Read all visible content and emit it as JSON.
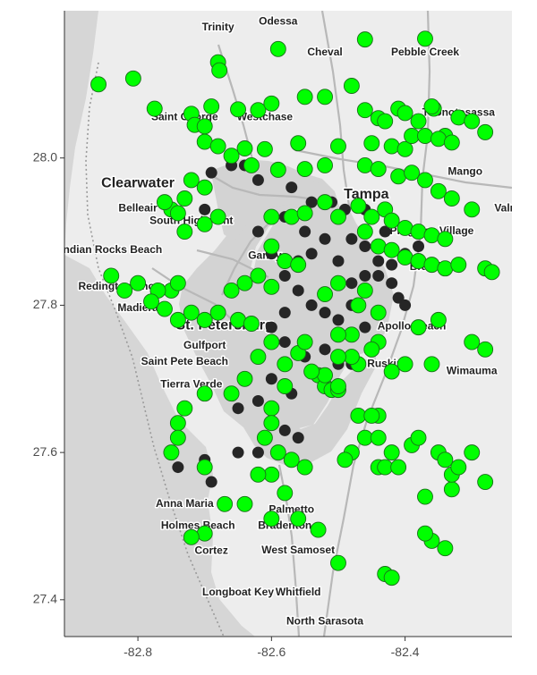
{
  "map": {
    "x_ticks": [
      {
        "value": -82.8,
        "label": "-82.8"
      },
      {
        "value": -82.6,
        "label": "-82.6"
      },
      {
        "value": -82.4,
        "label": "-82.4"
      }
    ],
    "y_ticks": [
      {
        "value": 28.0,
        "label": "28.0"
      },
      {
        "value": 27.8,
        "label": "27.8"
      },
      {
        "value": 27.6,
        "label": "27.6"
      },
      {
        "value": 27.4,
        "label": "27.4"
      }
    ],
    "xlim": [
      -82.91,
      -82.24
    ],
    "ylim": [
      27.35,
      28.2
    ],
    "colors": {
      "land": "#ededed",
      "water_gulf": "#d6d6d6",
      "water_bay": "#d3d3d3",
      "road": "#b8b8b8",
      "green_point": "#00ff00",
      "green_point_stroke": "#1a6e1a",
      "dark_point": "#262626"
    },
    "place_labels": [
      {
        "id": "odessa",
        "text": "Odessa",
        "lon": -82.59,
        "lat": 28.185,
        "size": "normal"
      },
      {
        "id": "trinity",
        "text": "Trinity",
        "lon": -82.68,
        "lat": 28.177,
        "size": "normal"
      },
      {
        "id": "cheval",
        "text": "Cheval",
        "lon": -82.52,
        "lat": 28.143,
        "size": "normal"
      },
      {
        "id": "pebble-creek",
        "text": "Pebble Creek",
        "lon": -82.37,
        "lat": 28.143,
        "size": "normal"
      },
      {
        "id": "saint-george",
        "text": "Saint George",
        "lon": -82.73,
        "lat": 28.055,
        "size": "normal"
      },
      {
        "id": "westchase",
        "text": "Westchase",
        "lon": -82.61,
        "lat": 28.055,
        "size": "normal"
      },
      {
        "id": "thonotosassa",
        "text": "Thonotosassa",
        "lon": -82.32,
        "lat": 28.061,
        "size": "normal"
      },
      {
        "id": "mango",
        "text": "Mango",
        "lon": -82.31,
        "lat": 27.981,
        "size": "normal"
      },
      {
        "id": "clearwater",
        "text": "Clearwater",
        "lon": -82.8,
        "lat": 27.965,
        "size": "large"
      },
      {
        "id": "belleair",
        "text": "Belleair",
        "lon": -82.8,
        "lat": 27.931,
        "size": "normal"
      },
      {
        "id": "tampa",
        "text": "Tampa",
        "lon": -82.458,
        "lat": 27.95,
        "size": "large"
      },
      {
        "id": "south-highpoint",
        "text": "South Highpoint",
        "lon": -82.72,
        "lat": 27.914,
        "size": "normal"
      },
      {
        "id": "valrico",
        "text": "Valrico",
        "lon": -82.24,
        "lat": 27.931,
        "size": "normal"
      },
      {
        "id": "progress-village",
        "text": "Progress Village",
        "lon": -82.36,
        "lat": 27.9,
        "size": "normal"
      },
      {
        "id": "indian-rocks-beach",
        "text": "Indian Rocks Beach",
        "lon": -82.84,
        "lat": 27.875,
        "size": "normal"
      },
      {
        "id": "gandy",
        "text": "Gandy",
        "lon": -82.61,
        "lat": 27.867,
        "size": "normal"
      },
      {
        "id": "brandon",
        "text": "Brandon",
        "lon": -82.36,
        "lat": 27.852,
        "size": "normal"
      },
      {
        "id": "redington-shores",
        "text": "Redington Shores",
        "lon": -82.82,
        "lat": 27.825,
        "size": "normal"
      },
      {
        "id": "madiera",
        "text": "Madiera",
        "lon": -82.8,
        "lat": 27.796,
        "size": "normal"
      },
      {
        "id": "st-petersburg",
        "text": "St. Petersburg",
        "lon": -82.67,
        "lat": 27.772,
        "size": "large"
      },
      {
        "id": "apollo-beach",
        "text": "Apollo Beach",
        "lon": -82.39,
        "lat": 27.771,
        "size": "normal"
      },
      {
        "id": "gulfport",
        "text": "Gulfport",
        "lon": -82.7,
        "lat": 27.745,
        "size": "normal"
      },
      {
        "id": "saint-pete-beach",
        "text": "Saint Pete Beach",
        "lon": -82.73,
        "lat": 27.723,
        "size": "normal"
      },
      {
        "id": "ruskin",
        "text": "Ruskin",
        "lon": -82.43,
        "lat": 27.72,
        "size": "normal"
      },
      {
        "id": "wimauma",
        "text": "Wimauma",
        "lon": -82.3,
        "lat": 27.71,
        "size": "normal"
      },
      {
        "id": "tierra-verde",
        "text": "Tierra Verde",
        "lon": -82.72,
        "lat": 27.692,
        "size": "normal"
      },
      {
        "id": "anna-maria",
        "text": "Anna Maria",
        "lon": -82.73,
        "lat": 27.53,
        "size": "normal"
      },
      {
        "id": "palmetto",
        "text": "Palmetto",
        "lon": -82.57,
        "lat": 27.522,
        "size": "normal"
      },
      {
        "id": "holmes-beach",
        "text": "Holmes Beach",
        "lon": -82.71,
        "lat": 27.5,
        "size": "normal"
      },
      {
        "id": "bradenton",
        "text": "Bradenton",
        "lon": -82.58,
        "lat": 27.5,
        "size": "normal"
      },
      {
        "id": "cortez",
        "text": "Cortez",
        "lon": -82.69,
        "lat": 27.466,
        "size": "normal"
      },
      {
        "id": "west-samoset",
        "text": "West Samoset",
        "lon": -82.56,
        "lat": 27.467,
        "size": "normal"
      },
      {
        "id": "longboat-key",
        "text": "Longboat Key",
        "lon": -82.65,
        "lat": 27.41,
        "size": "normal"
      },
      {
        "id": "whitfield",
        "text": "Whitfield",
        "lon": -82.56,
        "lat": 27.41,
        "size": "normal"
      },
      {
        "id": "north-sarasota",
        "text": "North Sarasota",
        "lon": -82.52,
        "lat": 27.37,
        "size": "normal"
      }
    ],
    "green_points": [
      [
        -82.859,
        28.1
      ],
      [
        -82.807,
        28.108
      ],
      [
        -82.775,
        28.067
      ],
      [
        -82.68,
        28.13
      ],
      [
        -82.678,
        28.119
      ],
      [
        -82.59,
        28.148
      ],
      [
        -82.48,
        28.098
      ],
      [
        -82.46,
        28.161
      ],
      [
        -82.37,
        28.162
      ],
      [
        -82.357,
        28.067
      ],
      [
        -82.32,
        28.055
      ],
      [
        -82.3,
        28.05
      ],
      [
        -82.72,
        28.06
      ],
      [
        -82.69,
        28.07
      ],
      [
        -82.715,
        28.045
      ],
      [
        -82.7,
        28.043
      ],
      [
        -82.65,
        28.066
      ],
      [
        -82.62,
        28.065
      ],
      [
        -82.6,
        28.074
      ],
      [
        -82.55,
        28.083
      ],
      [
        -82.52,
        28.083
      ],
      [
        -82.46,
        28.065
      ],
      [
        -82.44,
        28.054
      ],
      [
        -82.43,
        28.05
      ],
      [
        -82.41,
        28.067
      ],
      [
        -82.4,
        28.061
      ],
      [
        -82.38,
        28.05
      ],
      [
        -82.36,
        28.07
      ],
      [
        -82.34,
        28.03
      ],
      [
        -82.28,
        28.035
      ],
      [
        -82.7,
        28.022
      ],
      [
        -82.68,
        28.016
      ],
      [
        -82.64,
        28.013
      ],
      [
        -82.61,
        28.012
      ],
      [
        -82.56,
        28.02
      ],
      [
        -82.5,
        28.016
      ],
      [
        -82.45,
        28.02
      ],
      [
        -82.42,
        28.016
      ],
      [
        -82.4,
        28.012
      ],
      [
        -82.39,
        28.03
      ],
      [
        -82.37,
        28.03
      ],
      [
        -82.35,
        28.026
      ],
      [
        -82.33,
        28.021
      ],
      [
        -82.66,
        28.003
      ],
      [
        -82.63,
        27.99
      ],
      [
        -82.59,
        27.984
      ],
      [
        -82.55,
        27.985
      ],
      [
        -82.52,
        27.99
      ],
      [
        -82.46,
        27.99
      ],
      [
        -82.44,
        27.985
      ],
      [
        -82.41,
        27.975
      ],
      [
        -82.39,
        27.98
      ],
      [
        -82.37,
        27.97
      ],
      [
        -82.35,
        27.955
      ],
      [
        -82.33,
        27.945
      ],
      [
        -82.3,
        27.93
      ],
      [
        -82.72,
        27.97
      ],
      [
        -82.7,
        27.96
      ],
      [
        -82.73,
        27.945
      ],
      [
        -82.75,
        27.93
      ],
      [
        -82.76,
        27.94
      ],
      [
        -82.74,
        27.925
      ],
      [
        -82.73,
        27.9
      ],
      [
        -82.7,
        27.91
      ],
      [
        -82.68,
        27.92
      ],
      [
        -82.6,
        27.92
      ],
      [
        -82.57,
        27.92
      ],
      [
        -82.55,
        27.925
      ],
      [
        -82.52,
        27.94
      ],
      [
        -82.5,
        27.92
      ],
      [
        -82.47,
        27.935
      ],
      [
        -82.45,
        27.92
      ],
      [
        -82.43,
        27.93
      ],
      [
        -82.42,
        27.915
      ],
      [
        -82.4,
        27.905
      ],
      [
        -82.38,
        27.9
      ],
      [
        -82.36,
        27.895
      ],
      [
        -82.34,
        27.89
      ],
      [
        -82.46,
        27.9
      ],
      [
        -82.44,
        27.88
      ],
      [
        -82.42,
        27.875
      ],
      [
        -82.4,
        27.865
      ],
      [
        -82.38,
        27.86
      ],
      [
        -82.36,
        27.855
      ],
      [
        -82.34,
        27.85
      ],
      [
        -82.32,
        27.855
      ],
      [
        -82.28,
        27.85
      ],
      [
        -82.27,
        27.845
      ],
      [
        -82.6,
        27.88
      ],
      [
        -82.58,
        27.86
      ],
      [
        -82.56,
        27.855
      ],
      [
        -82.62,
        27.84
      ],
      [
        -82.64,
        27.83
      ],
      [
        -82.6,
        27.825
      ],
      [
        -82.66,
        27.82
      ],
      [
        -82.68,
        27.79
      ],
      [
        -82.7,
        27.78
      ],
      [
        -82.65,
        27.78
      ],
      [
        -82.63,
        27.775
      ],
      [
        -82.75,
        27.82
      ],
      [
        -82.74,
        27.83
      ],
      [
        -82.77,
        27.82
      ],
      [
        -82.78,
        27.805
      ],
      [
        -82.76,
        27.795
      ],
      [
        -82.74,
        27.78
      ],
      [
        -82.72,
        27.79
      ],
      [
        -82.84,
        27.84
      ],
      [
        -82.8,
        27.83
      ],
      [
        -82.82,
        27.82
      ],
      [
        -82.7,
        27.68
      ],
      [
        -82.73,
        27.66
      ],
      [
        -82.74,
        27.64
      ],
      [
        -82.74,
        27.62
      ],
      [
        -82.75,
        27.6
      ],
      [
        -82.7,
        27.58
      ],
      [
        -82.66,
        27.68
      ],
      [
        -82.64,
        27.7
      ],
      [
        -82.58,
        27.72
      ],
      [
        -82.56,
        27.735
      ],
      [
        -82.6,
        27.75
      ],
      [
        -82.62,
        27.73
      ],
      [
        -82.55,
        27.75
      ],
      [
        -82.53,
        27.705
      ],
      [
        -82.52,
        27.69
      ],
      [
        -82.51,
        27.685
      ],
      [
        -82.5,
        27.685
      ],
      [
        -82.58,
        27.69
      ],
      [
        -82.6,
        27.66
      ],
      [
        -82.6,
        27.64
      ],
      [
        -82.61,
        27.62
      ],
      [
        -82.59,
        27.6
      ],
      [
        -82.57,
        27.59
      ],
      [
        -82.55,
        27.58
      ],
      [
        -82.6,
        27.57
      ],
      [
        -82.62,
        27.57
      ],
      [
        -82.58,
        27.545
      ],
      [
        -82.64,
        27.53
      ],
      [
        -82.67,
        27.53
      ],
      [
        -82.56,
        27.51
      ],
      [
        -82.6,
        27.51
      ],
      [
        -82.53,
        27.495
      ],
      [
        -82.7,
        27.49
      ],
      [
        -82.72,
        27.485
      ],
      [
        -82.5,
        27.45
      ],
      [
        -82.43,
        27.435
      ],
      [
        -82.42,
        27.43
      ],
      [
        -82.44,
        27.58
      ],
      [
        -82.43,
        27.58
      ],
      [
        -82.37,
        27.54
      ],
      [
        -82.33,
        27.55
      ],
      [
        -82.36,
        27.48
      ],
      [
        -82.37,
        27.49
      ],
      [
        -82.34,
        27.47
      ],
      [
        -82.42,
        27.71
      ],
      [
        -82.44,
        27.75
      ],
      [
        -82.45,
        27.74
      ],
      [
        -82.48,
        27.76
      ],
      [
        -82.5,
        27.76
      ],
      [
        -82.4,
        27.72
      ],
      [
        -82.38,
        27.77
      ],
      [
        -82.47,
        27.8
      ],
      [
        -82.46,
        27.82
      ],
      [
        -82.5,
        27.83
      ],
      [
        -82.52,
        27.815
      ],
      [
        -82.44,
        27.79
      ],
      [
        -82.3,
        27.75
      ],
      [
        -82.28,
        27.74
      ],
      [
        -82.35,
        27.78
      ],
      [
        -82.36,
        27.72
      ],
      [
        -82.47,
        27.72
      ],
      [
        -82.48,
        27.73
      ],
      [
        -82.44,
        27.65
      ],
      [
        -82.5,
        27.69
      ],
      [
        -82.52,
        27.705
      ],
      [
        -82.54,
        27.71
      ],
      [
        -82.5,
        27.73
      ],
      [
        -82.47,
        27.65
      ],
      [
        -82.45,
        27.65
      ],
      [
        -82.46,
        27.62
      ],
      [
        -82.44,
        27.62
      ],
      [
        -82.48,
        27.6
      ],
      [
        -82.49,
        27.59
      ],
      [
        -82.42,
        27.6
      ],
      [
        -82.41,
        27.58
      ],
      [
        -82.39,
        27.61
      ],
      [
        -82.38,
        27.62
      ],
      [
        -82.35,
        27.6
      ],
      [
        -82.34,
        27.59
      ],
      [
        -82.33,
        27.57
      ],
      [
        -82.32,
        27.58
      ],
      [
        -82.3,
        27.6
      ],
      [
        -82.28,
        27.56
      ]
    ],
    "dark_points": [
      [
        -82.66,
        27.99
      ],
      [
        -82.64,
        27.99
      ],
      [
        -82.69,
        27.98
      ],
      [
        -82.7,
        27.93
      ],
      [
        -82.62,
        27.97
      ],
      [
        -82.57,
        27.96
      ],
      [
        -82.54,
        27.94
      ],
      [
        -82.51,
        27.94
      ],
      [
        -82.49,
        27.93
      ],
      [
        -82.46,
        27.93
      ],
      [
        -82.45,
        27.92
      ],
      [
        -82.43,
        27.9
      ],
      [
        -82.58,
        27.92
      ],
      [
        -82.55,
        27.9
      ],
      [
        -82.52,
        27.89
      ],
      [
        -82.48,
        27.89
      ],
      [
        -82.46,
        27.88
      ],
      [
        -82.44,
        27.86
      ],
      [
        -82.42,
        27.855
      ],
      [
        -82.4,
        27.87
      ],
      [
        -82.38,
        27.88
      ],
      [
        -82.44,
        27.84
      ],
      [
        -82.42,
        27.83
      ],
      [
        -82.41,
        27.81
      ],
      [
        -82.4,
        27.8
      ],
      [
        -82.62,
        27.9
      ],
      [
        -82.6,
        27.87
      ],
      [
        -82.58,
        27.84
      ],
      [
        -82.56,
        27.86
      ],
      [
        -82.54,
        27.87
      ],
      [
        -82.5,
        27.86
      ],
      [
        -82.48,
        27.83
      ],
      [
        -82.46,
        27.84
      ],
      [
        -82.56,
        27.82
      ],
      [
        -82.54,
        27.8
      ],
      [
        -82.52,
        27.79
      ],
      [
        -82.5,
        27.78
      ],
      [
        -82.48,
        27.8
      ],
      [
        -82.46,
        27.77
      ],
      [
        -82.58,
        27.79
      ],
      [
        -82.6,
        27.77
      ],
      [
        -82.58,
        27.75
      ],
      [
        -82.55,
        27.73
      ],
      [
        -82.52,
        27.74
      ],
      [
        -82.5,
        27.72
      ],
      [
        -82.48,
        27.72
      ],
      [
        -82.6,
        27.7
      ],
      [
        -82.57,
        27.68
      ],
      [
        -82.62,
        27.67
      ],
      [
        -82.65,
        27.66
      ],
      [
        -82.6,
        27.64
      ],
      [
        -82.58,
        27.63
      ],
      [
        -82.56,
        27.62
      ],
      [
        -82.62,
        27.6
      ],
      [
        -82.65,
        27.6
      ],
      [
        -82.7,
        27.59
      ],
      [
        -82.74,
        27.58
      ],
      [
        -82.69,
        27.56
      ]
    ]
  }
}
